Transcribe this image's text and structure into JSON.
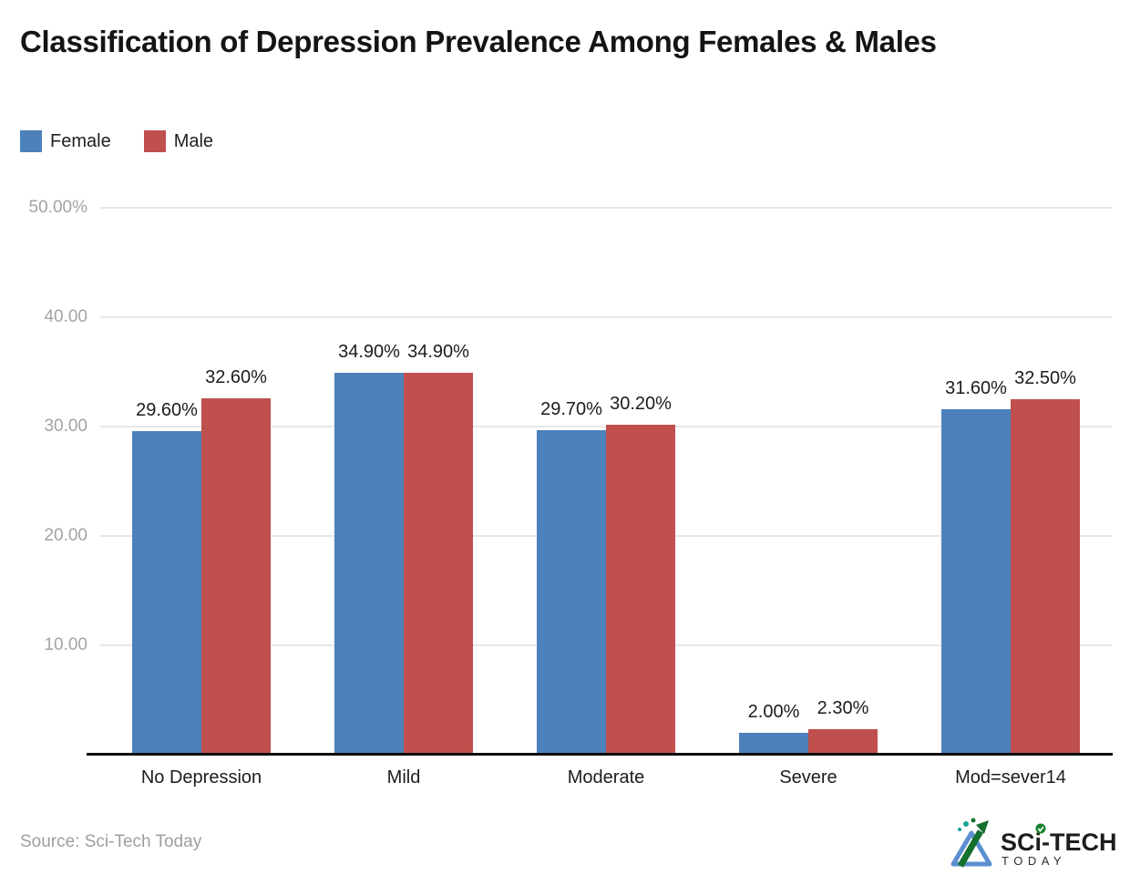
{
  "title": "Classification of Depression Prevalence Among Females & Males",
  "chart_data": {
    "type": "bar",
    "categories": [
      "No Depression",
      "Mild",
      "Moderate",
      "Severe",
      "Mod=sever14"
    ],
    "series": [
      {
        "name": "Female",
        "color": "#4c81bb",
        "values": [
          29.6,
          34.9,
          29.7,
          2.0,
          31.6
        ],
        "labels": [
          "29.60%",
          "34.90%",
          "29.70%",
          "2.00%",
          "31.60%"
        ]
      },
      {
        "name": "Male",
        "color": "#c0504d",
        "values": [
          32.6,
          34.9,
          30.2,
          2.3,
          32.5
        ],
        "labels": [
          "32.60%",
          "34.90%",
          "30.20%",
          "2.30%",
          "32.50%"
        ]
      }
    ],
    "y_axis": {
      "min": 0,
      "max": 50,
      "ticks": [
        {
          "value": 50,
          "label": "50.00%"
        },
        {
          "value": 40,
          "label": "40.00"
        },
        {
          "value": 30,
          "label": "30.00"
        },
        {
          "value": 20,
          "label": "20.00"
        },
        {
          "value": 10,
          "label": "10.00"
        }
      ]
    },
    "grid": true,
    "legend_position": "top-left",
    "colors": {
      "female": "#4c81bb",
      "male": "#c0504d",
      "gridline": "#e7e7e7",
      "axis": "#0d0d0d"
    }
  },
  "footer": {
    "source": "Source: Sci-Tech Today",
    "logo": {
      "line1": "SCi-TECH",
      "line2": "TODAY"
    }
  }
}
